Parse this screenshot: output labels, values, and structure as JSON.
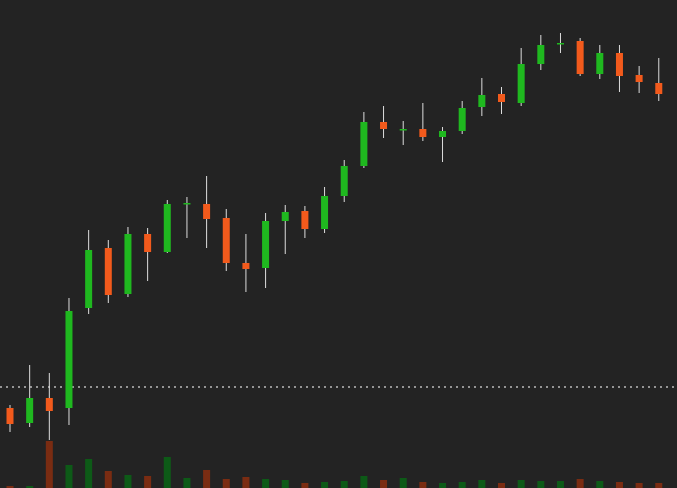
{
  "chart_data": {
    "type": "candlestick",
    "ylim": [
      0,
      488
    ],
    "open": [
      80,
      65,
      90,
      80,
      180,
      240,
      194,
      254,
      236,
      284,
      284,
      270,
      225,
      220,
      267,
      277,
      259,
      292,
      322,
      366,
      358,
      359,
      351,
      357,
      381,
      394,
      385,
      424,
      444,
      447,
      414,
      435,
      413,
      405
    ],
    "high": [
      83,
      123,
      115,
      190,
      258,
      248,
      261,
      260,
      288,
      291,
      312,
      279,
      254,
      275,
      283,
      282,
      301,
      328,
      376,
      382,
      367,
      385,
      361,
      387,
      410,
      401,
      440,
      453,
      455,
      450,
      443,
      443,
      422,
      430
    ],
    "low": [
      56,
      61,
      48,
      63,
      174,
      185,
      191,
      207,
      235,
      250,
      240,
      217,
      196,
      200,
      234,
      250,
      255,
      286,
      320,
      350,
      343,
      347,
      326,
      354,
      372,
      374,
      382,
      418,
      435,
      412,
      409,
      396,
      395,
      387
    ],
    "close": [
      64,
      90,
      77,
      177,
      238,
      193,
      254,
      236,
      284,
      285,
      269,
      225,
      219,
      267,
      276,
      259,
      292,
      322,
      366,
      359,
      359,
      351,
      357,
      380,
      393,
      386,
      424,
      443,
      445,
      414,
      435,
      412,
      406,
      394
    ],
    "volume": [
      2,
      2,
      47,
      23,
      29,
      17,
      13,
      12,
      31,
      10,
      18,
      9,
      11,
      9,
      8,
      5,
      6,
      7,
      12,
      8,
      10,
      6,
      5,
      6,
      8,
      5,
      8,
      7,
      7,
      9,
      7,
      6,
      5,
      5
    ],
    "volume_lim": [
      0,
      100
    ],
    "reference_line": 101,
    "up_color": "#1fb81f",
    "down_color": "#f25a1c",
    "volume_up_color": "#0d5a17",
    "volume_down_color": "#7a2c12"
  }
}
